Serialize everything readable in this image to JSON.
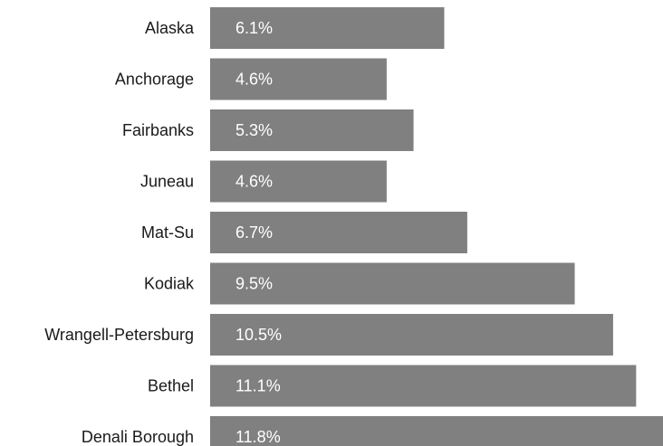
{
  "chart_data": {
    "type": "bar",
    "orientation": "horizontal",
    "categories": [
      "Alaska",
      "Anchorage",
      "Fairbanks",
      "Juneau",
      "Mat-Su",
      "Kodiak",
      "Wrangell-Petersburg",
      "Bethel",
      "Denali Borough"
    ],
    "values": [
      6.1,
      4.6,
      5.3,
      4.6,
      6.7,
      9.5,
      10.5,
      11.1,
      11.8
    ],
    "value_labels": [
      "6.1%",
      "4.6%",
      "5.3%",
      "4.6%",
      "6.7%",
      "9.5%",
      "10.5%",
      "11.1%",
      "11.8%"
    ],
    "bar_color": "#808080",
    "label_color": "#ffffff",
    "title": "",
    "xlabel": "",
    "ylabel": "",
    "xlim": [
      0,
      11.8
    ],
    "grid": false,
    "legend": "none"
  }
}
